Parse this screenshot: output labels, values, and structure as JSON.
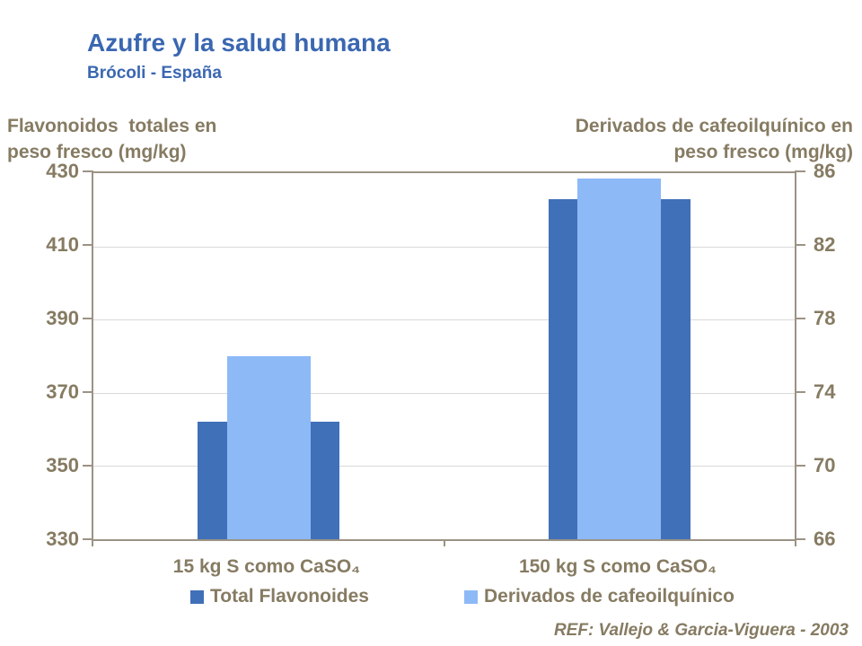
{
  "colors": {
    "title_blue": "#3A67B1",
    "text_brown": "#867B62",
    "axis_line": "#9C9284",
    "gridline": "#D9D9D9",
    "bar_dark_blue": "#4070B8",
    "bar_light_blue": "#8DB9F7"
  },
  "header": {
    "title": "Azufre y la salud humana",
    "subtitle": "Brócoli - España"
  },
  "chart_data": {
    "type": "bar",
    "title": "Azufre y la salud humana",
    "subtitle": "Brócoli - España",
    "categories": [
      "15 kg S como CaSO₄",
      "150 kg S como CaSO₄"
    ],
    "series": [
      {
        "name": "Total Flavonoides",
        "axis": "left",
        "color": "#4070B8",
        "values": [
          362,
          423
        ]
      },
      {
        "name": "Derivados de cafeoilquínico",
        "axis": "right",
        "color": "#8DB9F7",
        "values": [
          76,
          85.7
        ]
      }
    ],
    "left_axis": {
      "title": "Flavonoidos  totales en\npeso fresco (mg/kg)",
      "min": 330,
      "max": 430,
      "ticks": [
        430,
        410,
        390,
        370,
        350,
        330
      ]
    },
    "right_axis": {
      "title": "Derivados de cafeoilquínico en\npeso fresco (mg/kg)",
      "min": 66,
      "max": 86,
      "ticks": [
        86,
        82,
        78,
        74,
        70,
        66
      ]
    },
    "grid": true,
    "legend_position": "bottom"
  },
  "legend": {
    "items": [
      {
        "label": "Total Flavonoides",
        "color": "#4070B8"
      },
      {
        "label": "Derivados de cafeoilquínico",
        "color": "#8DB9F7"
      }
    ]
  },
  "footer": {
    "reference": "REF: Vallejo & Garcia-Viguera - 2003"
  }
}
